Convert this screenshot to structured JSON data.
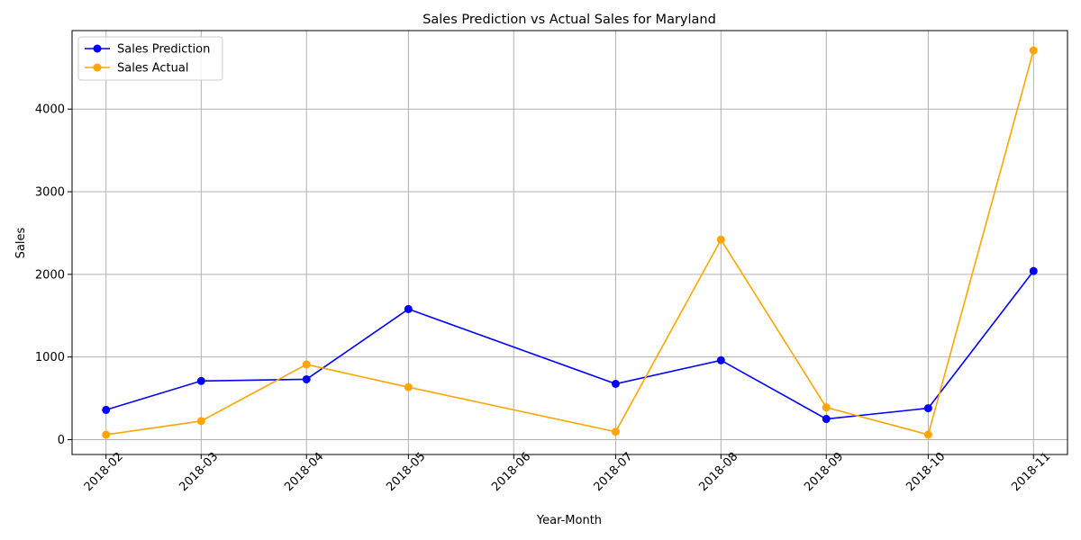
{
  "chart_data": {
    "type": "line",
    "title": "Sales Prediction vs Actual Sales for Maryland",
    "xlabel": "Year-Month",
    "ylabel": "Sales",
    "x_ticks": [
      "2018-02",
      "2018-03",
      "2018-04",
      "2018-05",
      "2018-06",
      "2018-07",
      "2018-08",
      "2018-09",
      "2018-10",
      "2018-11"
    ],
    "x_range": [
      "2018-01-22",
      "2018-11-11"
    ],
    "y_ticks": [
      0,
      1000,
      2000,
      3000,
      4000
    ],
    "ylim": [
      -180,
      4950
    ],
    "grid": true,
    "legend_position": "top-left",
    "series": [
      {
        "name": "Sales Prediction",
        "color": "#0000ff",
        "points": [
          {
            "x": "2018-02",
            "y": 360
          },
          {
            "x": "2018-03",
            "y": 710
          },
          {
            "x": "2018-04",
            "y": 730
          },
          {
            "x": "2018-05",
            "y": 1580
          },
          {
            "x": "2018-07",
            "y": 675
          },
          {
            "x": "2018-08",
            "y": 960
          },
          {
            "x": "2018-09",
            "y": 250
          },
          {
            "x": "2018-10",
            "y": 380
          },
          {
            "x": "2018-11",
            "y": 2040
          }
        ]
      },
      {
        "name": "Sales Actual",
        "color": "#ffa500",
        "points": [
          {
            "x": "2018-02",
            "y": 60
          },
          {
            "x": "2018-03",
            "y": 225
          },
          {
            "x": "2018-04",
            "y": 910
          },
          {
            "x": "2018-05",
            "y": 635
          },
          {
            "x": "2018-07",
            "y": 95
          },
          {
            "x": "2018-08",
            "y": 2420
          },
          {
            "x": "2018-09",
            "y": 390
          },
          {
            "x": "2018-10",
            "y": 60
          },
          {
            "x": "2018-11",
            "y": 4710
          }
        ]
      }
    ]
  }
}
